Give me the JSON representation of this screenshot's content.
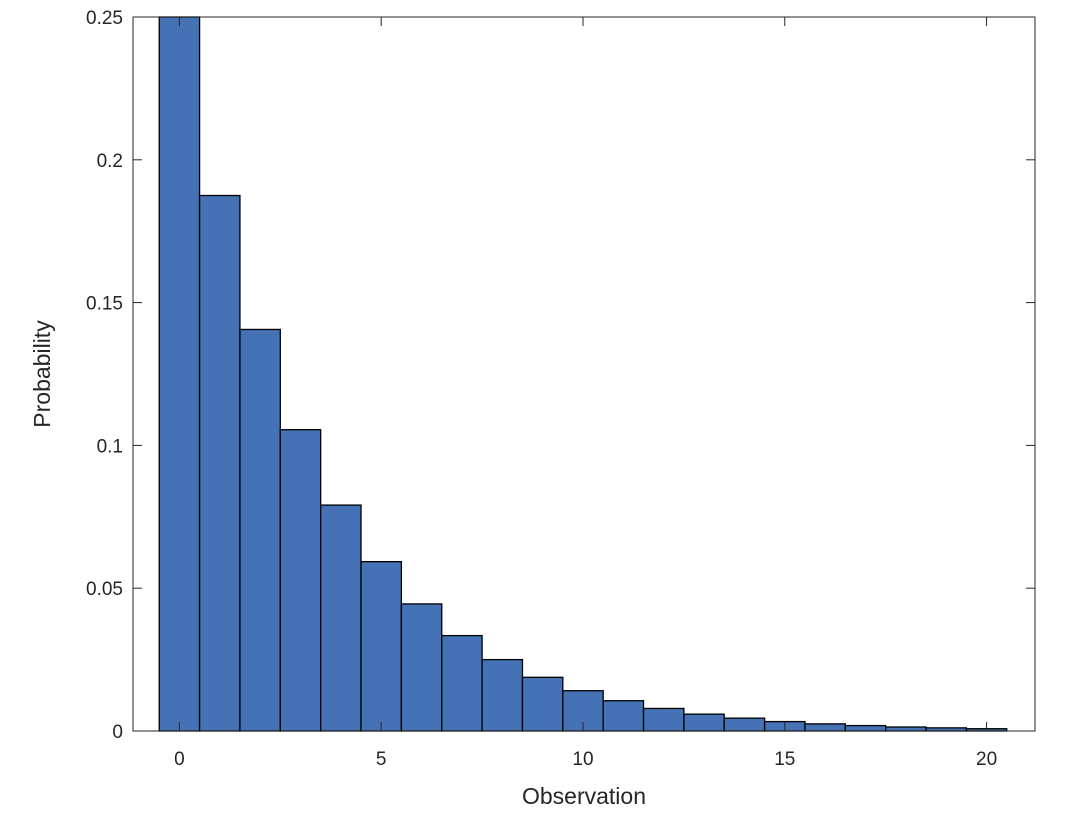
{
  "chart_data": {
    "type": "bar",
    "title": "",
    "xlabel": "Observation",
    "ylabel": "Probability",
    "categories": [
      0,
      1,
      2,
      3,
      4,
      5,
      6,
      7,
      8,
      9,
      10,
      11,
      12,
      13,
      14,
      15,
      16,
      17,
      18,
      19,
      20
    ],
    "values": [
      0.25,
      0.1875,
      0.1406,
      0.1055,
      0.0791,
      0.0593,
      0.0445,
      0.0334,
      0.025,
      0.0188,
      0.0141,
      0.0106,
      0.0079,
      0.0059,
      0.0045,
      0.0033,
      0.0025,
      0.0019,
      0.0014,
      0.0011,
      0.0008
    ],
    "xlim": [
      -1.15,
      21.2
    ],
    "ylim": [
      0,
      0.25
    ],
    "xticks": [
      0,
      5,
      10,
      15,
      20
    ],
    "xtick_labels": [
      "0",
      "5",
      "10",
      "15",
      "20"
    ],
    "yticks": [
      0,
      0.05,
      0.1,
      0.15,
      0.2,
      0.25
    ],
    "ytick_labels": [
      "0",
      "0.05",
      "0.1",
      "0.15",
      "0.2",
      "0.25"
    ],
    "bar_color": "#4472b4",
    "edge_color": "#000000",
    "grid": false,
    "legend": false,
    "box": true
  }
}
